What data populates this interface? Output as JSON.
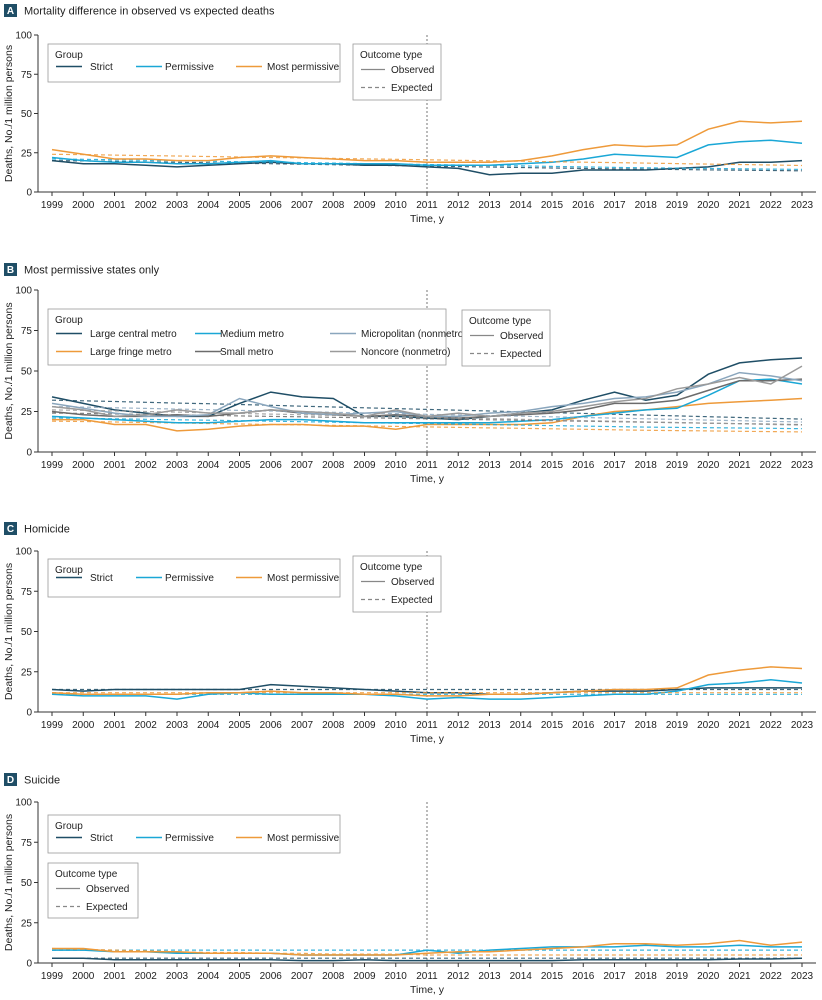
{
  "chart_data": [
    {
      "type": "line",
      "letter": "A",
      "title": "Mortality difference in observed vs expected deaths",
      "xlabel": "Time, y",
      "ylabel": "Deaths, No./1 million persons",
      "x": [
        1999,
        2000,
        2001,
        2002,
        2003,
        2004,
        2005,
        2006,
        2007,
        2008,
        2009,
        2010,
        2011,
        2012,
        2013,
        2014,
        2015,
        2016,
        2017,
        2018,
        2019,
        2020,
        2021,
        2022,
        2023
      ],
      "ylim": [
        0,
        100
      ],
      "yticks": [
        0,
        25,
        50,
        75,
        100
      ],
      "legend_group_title": "Group",
      "legend_outcome_title": "Outcome type",
      "outcome_types": [
        "Observed",
        "Expected"
      ],
      "series": [
        {
          "name": "Strict",
          "color": "#1f4e66",
          "observed": [
            20,
            18,
            18,
            17,
            16,
            17,
            18,
            19,
            18,
            18,
            17,
            17,
            16,
            15,
            11,
            12,
            12,
            14,
            14,
            14,
            15,
            16,
            19,
            19,
            20
          ],
          "expected": [
            20,
            19.8,
            19.5,
            19.2,
            18.9,
            18.6,
            18.3,
            18,
            17.7,
            17.4,
            17.1,
            16.8,
            16.5,
            16.2,
            15.9,
            15.6,
            15.3,
            15,
            14.7,
            14.5,
            14.3,
            14.1,
            13.9,
            13.7,
            13.5
          ]
        },
        {
          "name": "Permissive",
          "color": "#1aa7d6",
          "observed": [
            22,
            20,
            19,
            19,
            18,
            18,
            19,
            20,
            18,
            18,
            18,
            18,
            17,
            17,
            17,
            18,
            19,
            21,
            24,
            23,
            22,
            30,
            32,
            33,
            31
          ],
          "expected": [
            21,
            20.8,
            20.5,
            20.2,
            19.9,
            19.6,
            19.3,
            19,
            18.7,
            18.4,
            18.1,
            17.8,
            17.5,
            17.2,
            16.9,
            16.6,
            16.3,
            16,
            15.7,
            15.4,
            15.2,
            15,
            14.8,
            14.6,
            14.4
          ]
        },
        {
          "name": "Most permissive",
          "color": "#ee9a3a",
          "observed": [
            27,
            24,
            21,
            21,
            20,
            20,
            22,
            23,
            22,
            21,
            20,
            20,
            19,
            19,
            19,
            20,
            23,
            27,
            30,
            29,
            30,
            40,
            45,
            44,
            45
          ],
          "expected": [
            24,
            23.8,
            23.5,
            23.2,
            22.9,
            22.6,
            22.3,
            22,
            21.7,
            21.4,
            21.1,
            20.8,
            20.5,
            20.2,
            19.9,
            19.6,
            19.3,
            19,
            18.7,
            18.4,
            18.1,
            17.8,
            17.5,
            17.2,
            16.9
          ]
        }
      ]
    },
    {
      "type": "line",
      "letter": "B",
      "title": "Most permissive states only",
      "xlabel": "Time, y",
      "ylabel": "Deaths, No./1 million persons",
      "x": [
        1999,
        2000,
        2001,
        2002,
        2003,
        2004,
        2005,
        2006,
        2007,
        2008,
        2009,
        2010,
        2011,
        2012,
        2013,
        2014,
        2015,
        2016,
        2017,
        2018,
        2019,
        2020,
        2021,
        2022,
        2023
      ],
      "ylim": [
        0,
        100
      ],
      "yticks": [
        0,
        25,
        50,
        75,
        100
      ],
      "legend_group_title": "Group",
      "legend_outcome_title": "Outcome type",
      "outcome_types": [
        "Observed",
        "Expected"
      ],
      "series": [
        {
          "name": "Large central metro",
          "color": "#1f4e66",
          "observed": [
            34,
            30,
            26,
            24,
            22,
            22,
            30,
            37,
            34,
            33,
            22,
            22,
            21,
            20,
            22,
            24,
            26,
            32,
            37,
            32,
            35,
            48,
            55,
            57,
            58
          ],
          "expected": [
            32,
            31.6,
            31.2,
            30.7,
            30.2,
            29.8,
            29.3,
            28.8,
            28.3,
            27.8,
            27.3,
            26.8,
            26.3,
            25.8,
            25.3,
            24.8,
            24.3,
            23.8,
            23.3,
            22.8,
            22.3,
            21.8,
            21.3,
            20.8,
            20.3
          ]
        },
        {
          "name": "Large fringe metro",
          "color": "#ee9a3a",
          "observed": [
            20,
            20,
            17,
            17,
            13,
            14,
            16,
            17,
            17,
            16,
            16,
            14,
            17,
            17,
            17,
            17,
            18,
            22,
            25,
            26,
            28,
            30,
            31,
            32,
            33
          ],
          "expected": [
            19,
            18.8,
            18.5,
            18.2,
            17.9,
            17.6,
            17.3,
            17,
            16.7,
            16.4,
            16.1,
            15.8,
            15.5,
            15.2,
            14.9,
            14.6,
            14.3,
            14,
            13.7,
            13.4,
            13.2,
            13,
            12.8,
            12.6,
            12.4
          ]
        },
        {
          "name": "Medium metro",
          "color": "#1aa7d6",
          "observed": [
            22,
            21,
            20,
            19,
            18,
            18,
            19,
            20,
            20,
            19,
            18,
            18,
            18,
            18,
            18,
            19,
            20,
            22,
            24,
            26,
            27,
            35,
            44,
            45,
            42
          ],
          "expected": [
            21,
            20.8,
            20.5,
            20.2,
            19.9,
            19.6,
            19.3,
            19,
            18.7,
            18.4,
            18.1,
            17.8,
            17.5,
            17.2,
            16.9,
            16.6,
            16.3,
            16,
            15.7,
            15.4,
            15.2,
            15,
            14.8,
            14.6,
            14.4
          ]
        },
        {
          "name": "Small metro",
          "color": "#6b6b6b",
          "observed": [
            25,
            23,
            22,
            22,
            23,
            22,
            24,
            26,
            24,
            23,
            22,
            23,
            22,
            21,
            22,
            23,
            24,
            26,
            30,
            30,
            32,
            38,
            44,
            44,
            45
          ],
          "expected": [
            24,
            23.8,
            23.5,
            23.2,
            22.9,
            22.6,
            22.3,
            22,
            21.7,
            21.4,
            21.1,
            20.8,
            20.5,
            20.2,
            19.9,
            19.6,
            19.3,
            19,
            18.7,
            18.4,
            18.1,
            17.8,
            17.5,
            17.2,
            16.9
          ]
        },
        {
          "name": "Micropolitan (nonmetro)",
          "color": "#8aa6bd",
          "observed": [
            30,
            27,
            24,
            22,
            22,
            23,
            33,
            28,
            24,
            23,
            24,
            25,
            22,
            22,
            24,
            25,
            28,
            30,
            33,
            34,
            37,
            42,
            49,
            47,
            44
          ],
          "expected": [
            28,
            27.7,
            27.3,
            26.9,
            26.5,
            26.1,
            25.7,
            25.3,
            24.9,
            24.5,
            24.1,
            23.7,
            23.3,
            22.9,
            22.5,
            22.1,
            21.7,
            21.3,
            20.9,
            20.5,
            20.1,
            19.7,
            19.3,
            18.9,
            18.5
          ]
        },
        {
          "name": "Noncore (nonmetro)",
          "color": "#9a9a9a",
          "observed": [
            28,
            26,
            22,
            23,
            26,
            24,
            24,
            26,
            25,
            24,
            22,
            26,
            22,
            24,
            22,
            24,
            25,
            28,
            31,
            33,
            39,
            42,
            46,
            42,
            53
          ],
          "expected": [
            26,
            25.7,
            25.4,
            25,
            24.6,
            24.2,
            23.8,
            23.4,
            23,
            22.6,
            22.2,
            21.8,
            21.4,
            21,
            20.6,
            20.2,
            19.8,
            19.4,
            19,
            18.6,
            18.2,
            17.8,
            17.4,
            17,
            16.6
          ]
        }
      ]
    },
    {
      "type": "line",
      "letter": "C",
      "title": "Homicide",
      "xlabel": "Time, y",
      "ylabel": "Deaths, No./1 million persons",
      "x": [
        1999,
        2000,
        2001,
        2002,
        2003,
        2004,
        2005,
        2006,
        2007,
        2008,
        2009,
        2010,
        2011,
        2012,
        2013,
        2014,
        2015,
        2016,
        2017,
        2018,
        2019,
        2020,
        2021,
        2022,
        2023
      ],
      "ylim": [
        0,
        100
      ],
      "yticks": [
        0,
        25,
        50,
        75,
        100
      ],
      "legend_group_title": "Group",
      "legend_outcome_title": "Outcome type",
      "outcome_types": [
        "Observed",
        "Expected"
      ],
      "series": [
        {
          "name": "Strict",
          "color": "#1f4e66",
          "observed": [
            14,
            13,
            14,
            14,
            14,
            14,
            14,
            17,
            16,
            15,
            14,
            13,
            12,
            12,
            11,
            11,
            12,
            13,
            13,
            13,
            14,
            15,
            15,
            15,
            15
          ],
          "expected": [
            14,
            14,
            14,
            14,
            14,
            14,
            14,
            14,
            14,
            14,
            14,
            14,
            14,
            14,
            14,
            14,
            14,
            14,
            14,
            14,
            14,
            14,
            14,
            14,
            14
          ]
        },
        {
          "name": "Permissive",
          "color": "#1aa7d6",
          "observed": [
            11,
            10,
            10,
            10,
            8,
            11,
            12,
            11,
            11,
            11,
            11,
            10,
            8,
            9,
            8,
            8,
            9,
            10,
            11,
            11,
            13,
            17,
            18,
            20,
            18
          ],
          "expected": [
            11,
            11,
            11,
            11,
            11,
            11,
            11,
            11,
            11,
            11,
            11,
            11,
            11,
            11,
            11,
            11,
            11,
            11,
            11,
            11,
            11,
            11,
            11,
            11,
            11
          ]
        },
        {
          "name": "Most permissive",
          "color": "#ee9a3a",
          "observed": [
            12,
            11,
            11,
            11,
            11,
            12,
            12,
            13,
            12,
            12,
            11,
            11,
            10,
            10,
            11,
            11,
            12,
            13,
            14,
            14,
            15,
            23,
            26,
            28,
            27
          ],
          "expected": [
            12,
            12,
            12,
            12,
            12,
            12,
            12,
            12,
            12,
            12,
            12,
            12,
            12,
            12,
            12,
            12,
            12,
            12,
            12,
            12,
            12,
            12,
            12,
            12,
            12
          ]
        }
      ]
    },
    {
      "type": "line",
      "letter": "D",
      "title": "Suicide",
      "xlabel": "Time, y",
      "ylabel": "Deaths, No./1 million persons",
      "x": [
        1999,
        2000,
        2001,
        2002,
        2003,
        2004,
        2005,
        2006,
        2007,
        2008,
        2009,
        2010,
        2011,
        2012,
        2013,
        2014,
        2015,
        2016,
        2017,
        2018,
        2019,
        2020,
        2021,
        2022,
        2023
      ],
      "ylim": [
        0,
        100
      ],
      "yticks": [
        0,
        25,
        50,
        75,
        100
      ],
      "legend_group_title": "Group",
      "legend_outcome_title": "Outcome type",
      "outcome_types": [
        "Observed",
        "Expected"
      ],
      "series": [
        {
          "name": "Strict",
          "color": "#1f4e66",
          "observed": [
            3,
            3,
            2,
            2,
            2,
            2,
            2,
            2,
            1.5,
            1.5,
            2,
            1.5,
            1.5,
            1.5,
            1.5,
            1.5,
            1.5,
            2,
            2,
            2,
            2,
            2,
            2.5,
            2.5,
            3
          ],
          "expected": [
            3,
            3,
            3,
            3,
            3,
            3,
            3,
            3,
            3,
            3,
            3,
            3,
            3,
            3,
            3,
            3,
            3,
            3,
            3,
            3,
            3,
            3,
            3,
            3,
            3
          ]
        },
        {
          "name": "Permissive",
          "color": "#1aa7d6",
          "observed": [
            8,
            8,
            7,
            7,
            6,
            6,
            6,
            6,
            5,
            5,
            5,
            5,
            8,
            6,
            8,
            9,
            10,
            10,
            10,
            11,
            10,
            10,
            11,
            10,
            10
          ],
          "expected": [
            8,
            8,
            8,
            8,
            8,
            8,
            8,
            8,
            8,
            8,
            8,
            8,
            8,
            8,
            8,
            8,
            8,
            8,
            8,
            8,
            8,
            8,
            8,
            8,
            8
          ]
        },
        {
          "name": "Most permissive",
          "color": "#ee9a3a",
          "observed": [
            9,
            9,
            7,
            7,
            7,
            6,
            6,
            6,
            5,
            5,
            5,
            5,
            6,
            7,
            7,
            8,
            9,
            10,
            12,
            12,
            11,
            12,
            14,
            11,
            13
          ],
          "expected": [
            9,
            8.5,
            8,
            7.5,
            7,
            6.5,
            6.5,
            6,
            6,
            5.5,
            5.5,
            5.5,
            5,
            5,
            5,
            5,
            5,
            5,
            5,
            5,
            5,
            5,
            5,
            5,
            5
          ]
        }
      ]
    }
  ]
}
